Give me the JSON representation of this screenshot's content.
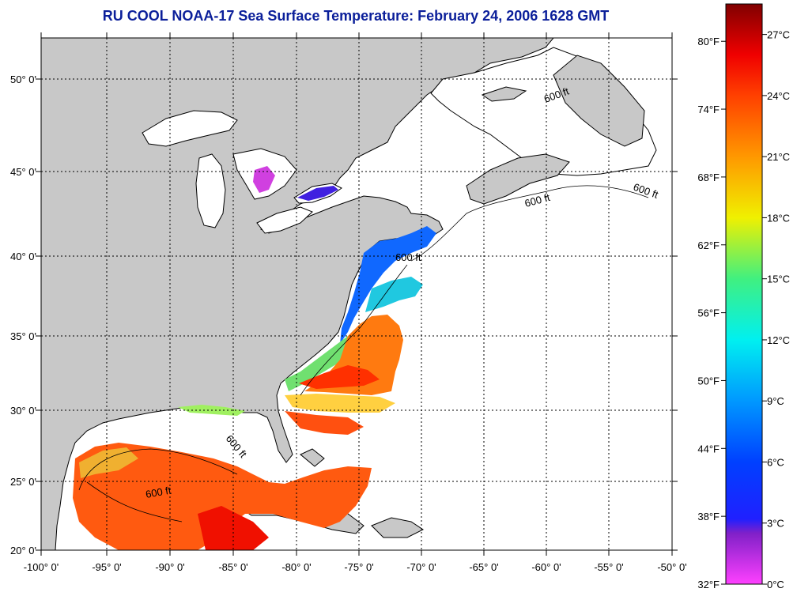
{
  "title": "RU COOL  NOAA-17  Sea Surface Temperature:  February 24, 2006 1628 GMT",
  "map": {
    "lon_labels": [
      "-100° 0'",
      "-95° 0'",
      "-90° 0'",
      "-85° 0'",
      "-80° 0'",
      "-75° 0'",
      "-70° 0'",
      "-65° 0'",
      "-60° 0'",
      "-55° 0'",
      "-50° 0'"
    ],
    "lat_labels": [
      "50° 0'",
      "45° 0'",
      "40° 0'",
      "35° 0'",
      "30° 0'",
      "25° 0'",
      "20° 0'"
    ],
    "isobath_label": "600 ft",
    "colors": {
      "land": "#c8c8c8",
      "ocean_no_data": "#ffffff",
      "coastline": "#000000"
    }
  },
  "colorbar": {
    "fahrenheit": [
      "80°F",
      "74°F",
      "68°F",
      "62°F",
      "56°F",
      "50°F",
      "44°F",
      "38°F",
      "32°F"
    ],
    "celsius": [
      "27°C",
      "24°C",
      "21°C",
      "18°C",
      "15°C",
      "12°C",
      "9°C",
      "6°C",
      "3°C",
      "0°C"
    ],
    "range_c": [
      0,
      28.5
    ],
    "stops": [
      {
        "c": 0,
        "color": "#ff40ff"
      },
      {
        "c": 2.5,
        "color": "#8020c8"
      },
      {
        "c": 3.2,
        "color": "#2020ff"
      },
      {
        "c": 6,
        "color": "#0040ff"
      },
      {
        "c": 9,
        "color": "#0098ff"
      },
      {
        "c": 12,
        "color": "#00f0f0"
      },
      {
        "c": 15,
        "color": "#40f080"
      },
      {
        "c": 18,
        "color": "#f0f000"
      },
      {
        "c": 21,
        "color": "#ff9800"
      },
      {
        "c": 24,
        "color": "#ff4000"
      },
      {
        "c": 26,
        "color": "#f00000"
      },
      {
        "c": 28.5,
        "color": "#800000"
      }
    ]
  }
}
